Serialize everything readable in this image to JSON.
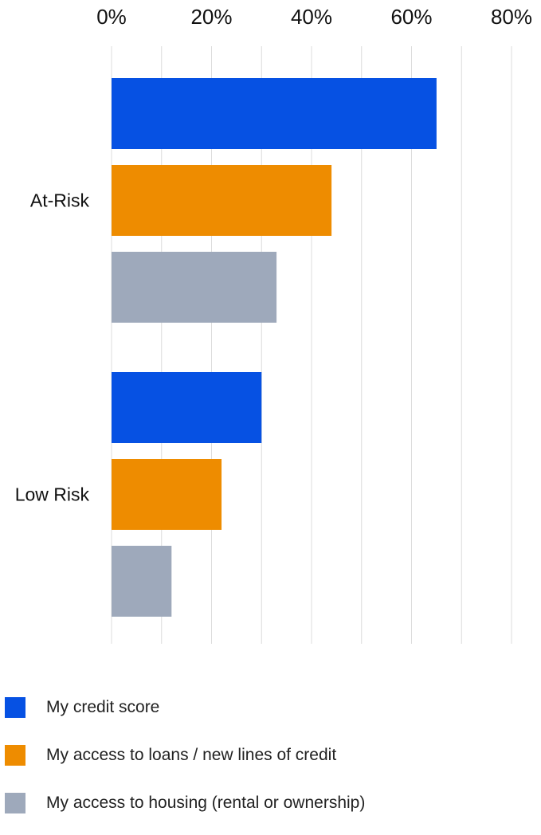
{
  "chart_data": {
    "type": "bar",
    "orientation": "horizontal",
    "categories": [
      "At-Risk",
      "Low Risk"
    ],
    "series": [
      {
        "name": "My credit score",
        "color": "#0651e3",
        "values": [
          65,
          30
        ]
      },
      {
        "name": "My access to loans / new lines of credit",
        "color": "#ee8c00",
        "values": [
          44,
          22
        ]
      },
      {
        "name": "My access to housing (rental or ownership)",
        "color": "#9ea9bb",
        "values": [
          33,
          12
        ]
      }
    ],
    "xlim": [
      0,
      80
    ],
    "ticks": [
      0,
      20,
      40,
      60,
      80
    ],
    "tick_labels": [
      "0%",
      "20%",
      "40%",
      "60%",
      "80%"
    ],
    "grid": true,
    "grid_color": "#dcdcdc",
    "legend_position": "bottom",
    "title": "",
    "xlabel": "",
    "ylabel": ""
  }
}
